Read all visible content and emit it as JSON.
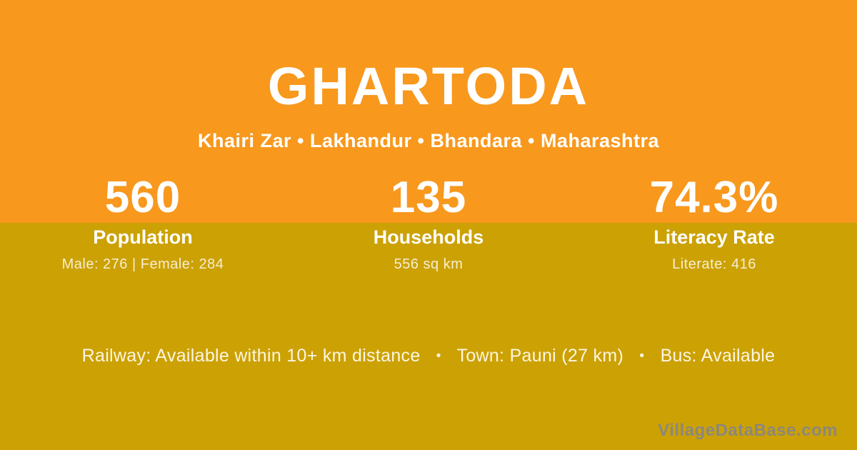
{
  "colors": {
    "orange": "#F8981D",
    "gold": "#CCA104",
    "text": "#FFFFFF",
    "cream": "rgba(255,255,255,0.82)",
    "footer_text": "#FCF6E0",
    "watermark": "#8C887B"
  },
  "header": {
    "title": "GHARTODA",
    "subtitle": "Khairi Zar • Lakhandur • Bhandara • Maharashtra"
  },
  "stats": [
    {
      "value": "560",
      "label": "Population",
      "detail": "Male: 276 | Female: 284"
    },
    {
      "value": "135",
      "label": "Households",
      "detail": "556 sq km"
    },
    {
      "value": "74.3%",
      "label": "Literacy Rate",
      "detail": "Literate: 416"
    }
  ],
  "footer": {
    "separator": "•",
    "items": [
      "Railway: Available within 10+ km distance",
      "Town: Pauni (27 km)",
      "Bus: Available"
    ],
    "watermark": "VillageDataBase.com"
  }
}
